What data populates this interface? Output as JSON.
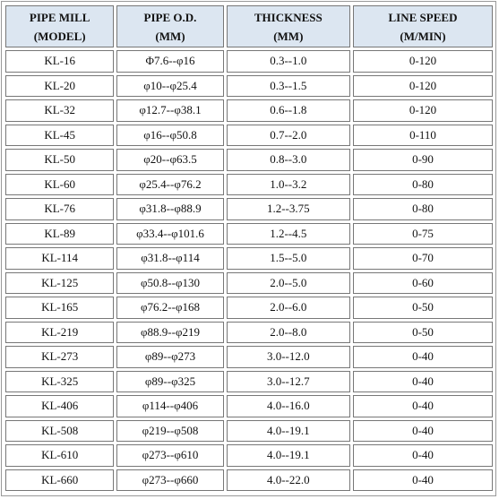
{
  "table": {
    "header": [
      [
        "PIPE MILL",
        "(MODEL)"
      ],
      [
        "PIPE O.D.",
        "(MM)"
      ],
      [
        "THICKNESS",
        "(MM)"
      ],
      [
        "LINE SPEED",
        "(M/MIN)"
      ]
    ],
    "rows": [
      [
        "KL-16",
        "Φ7.6--φ16",
        "0.3--1.0",
        "0-120"
      ],
      [
        "KL-20",
        "φ10--φ25.4",
        "0.3--1.5",
        "0-120"
      ],
      [
        "KL-32",
        "φ12.7--φ38.1",
        "0.6--1.8",
        "0-120"
      ],
      [
        "KL-45",
        "φ16--φ50.8",
        "0.7--2.0",
        "0-110"
      ],
      [
        "KL-50",
        "φ20--φ63.5",
        "0.8--3.0",
        "0-90"
      ],
      [
        "KL-60",
        "φ25.4--φ76.2",
        "1.0--3.2",
        "0-80"
      ],
      [
        "KL-76",
        "φ31.8--φ88.9",
        "1.2--3.75",
        "0-80"
      ],
      [
        "KL-89",
        "φ33.4--φ101.6",
        "1.2--4.5",
        "0-75"
      ],
      [
        "KL-114",
        "φ31.8--φ114",
        "1.5--5.0",
        "0-70"
      ],
      [
        "KL-125",
        "φ50.8--φ130",
        "2.0--5.0",
        "0-60"
      ],
      [
        "KL-165",
        "φ76.2--φ168",
        "2.0--6.0",
        "0-50"
      ],
      [
        "KL-219",
        "φ88.9--φ219",
        "2.0--8.0",
        "0-50"
      ],
      [
        "KL-273",
        "φ89--φ273",
        "3.0--12.0",
        "0-40"
      ],
      [
        "KL-325",
        "φ89--φ325",
        "3.0--12.7",
        "0-40"
      ],
      [
        "KL-406",
        "φ114--φ406",
        "4.0--16.0",
        "0-40"
      ],
      [
        "KL-508",
        "φ219--φ508",
        "4.0--19.1",
        "0-40"
      ],
      [
        "KL-610",
        "φ273--φ610",
        "4.0--19.1",
        "0-40"
      ],
      [
        "KL-660",
        "φ273--φ660",
        "4.0--22.0",
        "0-40"
      ]
    ]
  }
}
